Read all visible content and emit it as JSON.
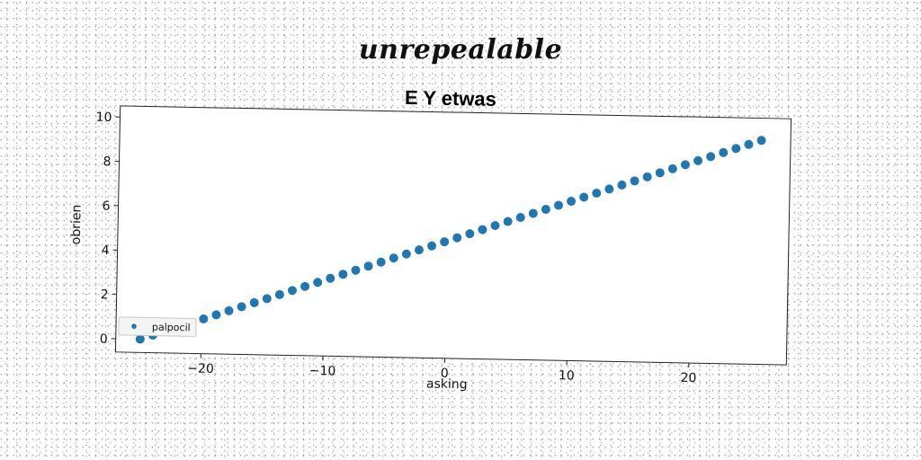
{
  "suptitle": "unrepealable",
  "chart_data": {
    "type": "scatter",
    "title": "E Y etwas",
    "xlabel": "asking",
    "ylabel": "obrien",
    "xlim": [
      -27,
      28
    ],
    "ylim": [
      -0.6,
      10.5
    ],
    "xticks": [
      -20,
      -10,
      0,
      10,
      20
    ],
    "yticks": [
      0,
      2,
      4,
      6,
      8,
      10
    ],
    "grid": false,
    "legend_position": "lower-left",
    "series": [
      {
        "name": "palpocil",
        "color": "#1f77b4",
        "x_start": -25,
        "x_end": 25.6,
        "y_start": 0.0,
        "y_end": 9.5,
        "n_points": 50
      }
    ]
  }
}
